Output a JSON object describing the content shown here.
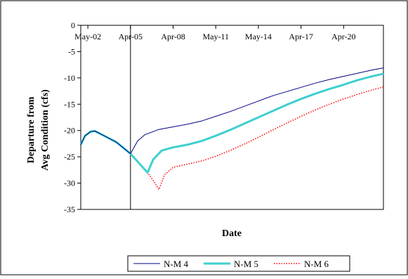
{
  "chart_data": {
    "type": "line",
    "title": "",
    "xlabel": "Date",
    "ylabel_lines": [
      "Departure from",
      "Avg Condition (cfs)"
    ],
    "ylim": [
      -35,
      0
    ],
    "y_ticks": [
      0,
      -5,
      -10,
      -15,
      -20,
      -25,
      -30,
      -35
    ],
    "x_ticks": [
      {
        "label": "May-02",
        "x": 0
      },
      {
        "label": "Apr-05",
        "x": 3
      },
      {
        "label": "Apr-08",
        "x": 6
      },
      {
        "label": "May-11",
        "x": 9
      },
      {
        "label": "May-14",
        "x": 12
      },
      {
        "label": "Apr-17",
        "x": 15
      },
      {
        "label": "Apr-20",
        "x": 18
      }
    ],
    "xlim": [
      -0.5,
      20.8
    ],
    "vertical_line_x": 3,
    "grid": false,
    "legend_position": "bottom",
    "series": [
      {
        "name": "N-M 4",
        "color": "#000080",
        "style": "solid",
        "width": 1,
        "points": [
          [
            -0.5,
            -22.7
          ],
          [
            -0.2,
            -21.0
          ],
          [
            0.2,
            -20.2
          ],
          [
            0.5,
            -20.1
          ],
          [
            1.0,
            -20.8
          ],
          [
            2.0,
            -22.2
          ],
          [
            3.0,
            -24.4
          ],
          [
            3.5,
            -22.0
          ],
          [
            4.0,
            -20.8
          ],
          [
            5.0,
            -19.8
          ],
          [
            6.0,
            -19.3
          ],
          [
            7.0,
            -18.8
          ],
          [
            8.0,
            -18.2
          ],
          [
            9.0,
            -17.3
          ],
          [
            10.0,
            -16.4
          ],
          [
            11.0,
            -15.4
          ],
          [
            12.0,
            -14.4
          ],
          [
            13.0,
            -13.4
          ],
          [
            14.0,
            -12.6
          ],
          [
            15.0,
            -11.8
          ],
          [
            16.0,
            -11.0
          ],
          [
            17.0,
            -10.3
          ],
          [
            18.0,
            -9.7
          ],
          [
            19.0,
            -9.1
          ],
          [
            20.0,
            -8.5
          ],
          [
            20.8,
            -8.1
          ]
        ]
      },
      {
        "name": "N-M 5",
        "color": "#40CFCF",
        "style": "solid",
        "width": 3,
        "points": [
          [
            -0.5,
            -22.7
          ],
          [
            -0.2,
            -21.0
          ],
          [
            0.2,
            -20.2
          ],
          [
            0.5,
            -20.1
          ],
          [
            1.0,
            -20.8
          ],
          [
            2.0,
            -22.2
          ],
          [
            3.0,
            -24.4
          ],
          [
            3.8,
            -26.8
          ],
          [
            4.2,
            -28.0
          ],
          [
            4.6,
            -25.5
          ],
          [
            5.2,
            -23.8
          ],
          [
            6.0,
            -23.2
          ],
          [
            7.0,
            -22.7
          ],
          [
            8.0,
            -22.0
          ],
          [
            9.0,
            -21.0
          ],
          [
            10.0,
            -19.9
          ],
          [
            11.0,
            -18.7
          ],
          [
            12.0,
            -17.5
          ],
          [
            13.0,
            -16.3
          ],
          [
            14.0,
            -15.1
          ],
          [
            15.0,
            -14.0
          ],
          [
            16.0,
            -13.0
          ],
          [
            17.0,
            -12.1
          ],
          [
            18.0,
            -11.3
          ],
          [
            19.0,
            -10.4
          ],
          [
            20.0,
            -9.7
          ],
          [
            20.8,
            -9.2
          ]
        ]
      },
      {
        "name": "N-M 6",
        "color": "#FF0000",
        "style": "dotted",
        "width": 1.5,
        "points": [
          [
            -0.5,
            -22.7
          ],
          [
            -0.2,
            -21.0
          ],
          [
            0.2,
            -20.2
          ],
          [
            0.5,
            -20.1
          ],
          [
            1.0,
            -20.8
          ],
          [
            2.0,
            -22.2
          ],
          [
            3.0,
            -24.4
          ],
          [
            3.8,
            -26.8
          ],
          [
            4.2,
            -28.0
          ],
          [
            4.6,
            -29.5
          ],
          [
            5.0,
            -31.2
          ],
          [
            5.4,
            -28.4
          ],
          [
            6.0,
            -27.0
          ],
          [
            7.0,
            -26.4
          ],
          [
            8.0,
            -25.8
          ],
          [
            9.0,
            -24.9
          ],
          [
            10.0,
            -23.8
          ],
          [
            11.0,
            -22.6
          ],
          [
            12.0,
            -21.3
          ],
          [
            13.0,
            -19.9
          ],
          [
            14.0,
            -18.6
          ],
          [
            15.0,
            -17.3
          ],
          [
            16.0,
            -16.1
          ],
          [
            17.0,
            -15.0
          ],
          [
            18.0,
            -14.0
          ],
          [
            19.0,
            -13.1
          ],
          [
            20.0,
            -12.3
          ],
          [
            20.8,
            -11.7
          ]
        ]
      }
    ]
  }
}
